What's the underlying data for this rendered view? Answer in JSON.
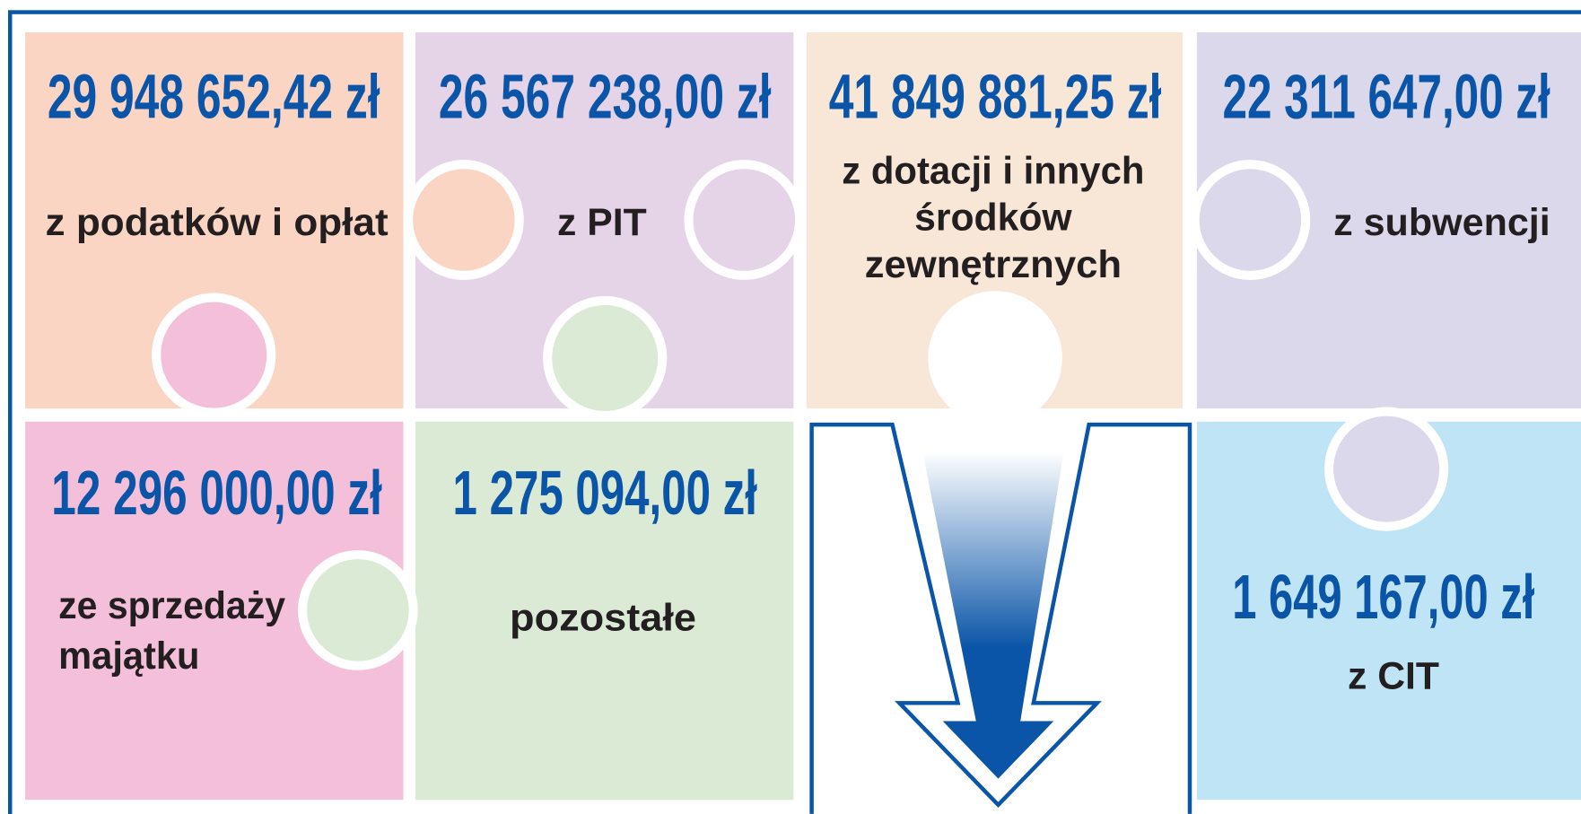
{
  "tiles": [
    {
      "amount": "29 948 652,42 zł",
      "label": [
        "z podatków i opłat"
      ]
    },
    {
      "amount": "26 567 238,00 zł",
      "label": [
        "z PIT"
      ]
    },
    {
      "amount": "41 849 881,25 zł",
      "label": [
        "z dotacji i innych",
        "środków",
        "zewnętrznych"
      ]
    },
    {
      "amount": "22 311 647,00 zł",
      "label": [
        "z subwencji"
      ]
    },
    {
      "amount": "12 296 000,00 zł",
      "label": [
        "ze sprzedaży",
        "majątku"
      ]
    },
    {
      "amount": "1 275 094,00 zł",
      "label": [
        "pozostałe"
      ]
    },
    {
      "amount": "1 649 167,00 zł",
      "label": [
        "z CIT"
      ]
    }
  ]
}
